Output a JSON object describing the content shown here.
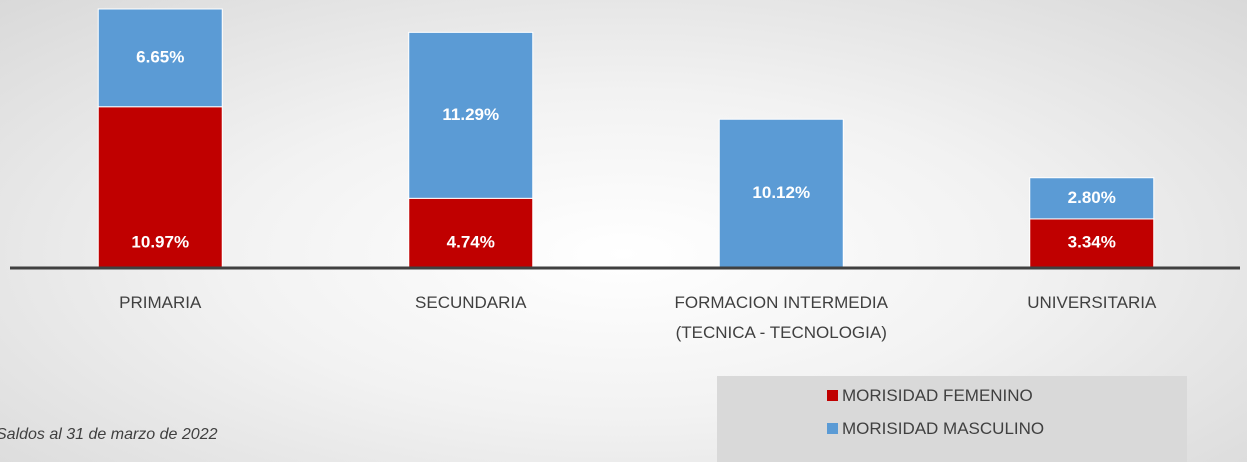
{
  "chart_data": {
    "type": "stacked-bar",
    "categories": [
      "PRIMARIA",
      "SECUNDARIA",
      "FORMACION INTERMEDIA\n(TECNICA - TECNOLOGIA)",
      "UNIVERSITARIA"
    ],
    "series": [
      {
        "name": "MORISIDAD FEMENINO",
        "color": "#c00000",
        "values": [
          10.97,
          4.74,
          null,
          3.34
        ],
        "value_labels": [
          "10.97%",
          "4.74%",
          null,
          "3.34%"
        ]
      },
      {
        "name": "MORISIDAD MASCULINO",
        "color": "#5b9bd5",
        "values": [
          6.65,
          11.29,
          10.12,
          2.8
        ],
        "value_labels": [
          "6.65%",
          "11.29%",
          "10.12%",
          "2.80%"
        ]
      }
    ],
    "ylim": [
      0,
      18
    ],
    "legend": "bottom-right",
    "annotation": "Saldos al 31 de marzo de 2022"
  }
}
